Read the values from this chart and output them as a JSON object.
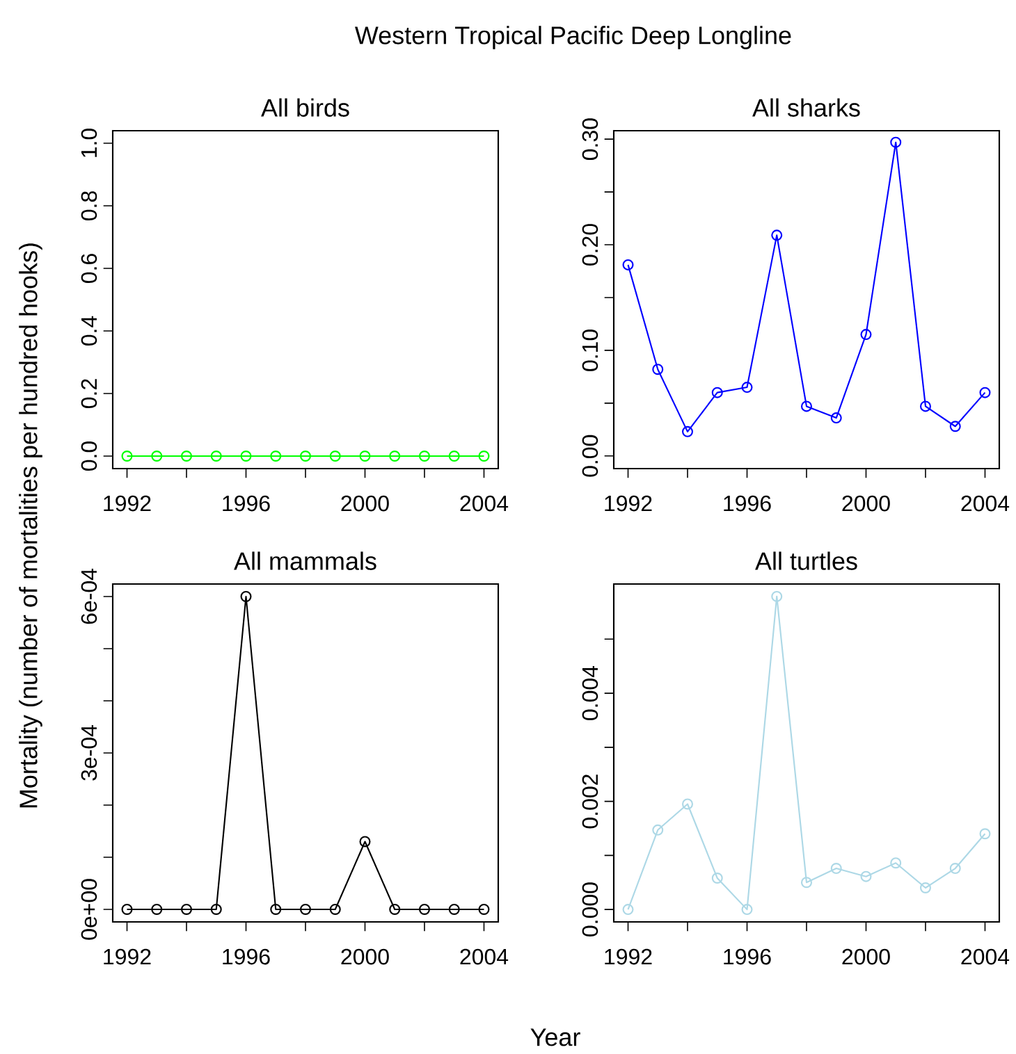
{
  "chart_data": [
    {
      "type": "line",
      "title": "All birds",
      "annotations": [
        "Western Tropical Pacific Deep Longline"
      ],
      "ylabel": "Mortality (number of mortalities per hundred hooks)",
      "marker": "circle",
      "line_style": "solid",
      "x": [
        1992,
        1993,
        1994,
        1995,
        1996,
        1997,
        1998,
        1999,
        2000,
        2001,
        2002,
        2003,
        2004
      ],
      "series": [
        {
          "color": "#00ff00",
          "values": [
            0,
            0,
            0,
            0,
            0,
            0,
            0,
            0,
            0,
            0,
            0,
            0,
            0
          ]
        }
      ],
      "xlim": [
        1991.52,
        2004.48
      ],
      "ylim": [
        -0.04,
        1.04
      ],
      "xticks": [
        1992,
        {
          "value": 1994,
          "label": null
        },
        1996,
        {
          "value": 1998,
          "label": null
        },
        2000,
        {
          "value": 2002,
          "label": null
        },
        2004
      ],
      "yticks": [
        {
          "value": 0,
          "label": "0.0"
        },
        0.2,
        0.4,
        0.6,
        0.8,
        {
          "value": 1,
          "label": "1.0"
        }
      ]
    },
    {
      "type": "line",
      "title": "All sharks",
      "marker": "circle",
      "line_style": "solid",
      "x": [
        1992,
        1993,
        1994,
        1995,
        1996,
        1997,
        1998,
        1999,
        2000,
        2001,
        2002,
        2003,
        2004
      ],
      "series": [
        {
          "color": "#0000ff",
          "values": [
            0.181,
            0.082,
            0.023,
            0.06,
            0.065,
            0.209,
            0.047,
            0.036,
            0.115,
            0.297,
            0.047,
            0.028,
            0.06
          ]
        }
      ],
      "xlim": [
        1991.52,
        2004.48
      ],
      "ylim": [
        -0.012,
        0.308
      ],
      "xticks": [
        1992,
        {
          "value": 1994,
          "label": null
        },
        1996,
        {
          "value": 1998,
          "label": null
        },
        2000,
        {
          "value": 2002,
          "label": null
        },
        2004
      ],
      "yticks": [
        {
          "value": 0,
          "label": "0.00"
        },
        {
          "value": 0.05,
          "label": null
        },
        {
          "value": 0.1,
          "label": "0.10"
        },
        {
          "value": 0.15,
          "label": null
        },
        {
          "value": 0.2,
          "label": "0.20"
        },
        {
          "value": 0.25,
          "label": null
        },
        {
          "value": 0.3,
          "label": "0.30"
        }
      ]
    },
    {
      "type": "line",
      "title": "All mammals",
      "xlabel": "Year",
      "marker": "circle",
      "line_style": "solid",
      "x": [
        1992,
        1993,
        1994,
        1995,
        1996,
        1997,
        1998,
        1999,
        2000,
        2001,
        2002,
        2003,
        2004
      ],
      "series": [
        {
          "color": "#000000",
          "values": [
            0,
            0,
            0,
            0,
            0.0006,
            0,
            0,
            0,
            0.00013,
            0,
            0,
            0,
            0
          ]
        }
      ],
      "xlim": [
        1991.52,
        2004.48
      ],
      "ylim": [
        -2.4e-05,
        0.000624
      ],
      "xticks": [
        1992,
        {
          "value": 1994,
          "label": null
        },
        1996,
        {
          "value": 1998,
          "label": null
        },
        2000,
        {
          "value": 2002,
          "label": null
        },
        2004
      ],
      "yticks": [
        {
          "value": 0,
          "label": "0e+00"
        },
        {
          "value": 0.0001,
          "label": null
        },
        {
          "value": 0.0002,
          "label": null
        },
        {
          "value": 0.0003,
          "label": "3e-04"
        },
        {
          "value": 0.0004,
          "label": null
        },
        {
          "value": 0.0005,
          "label": null
        },
        {
          "value": 0.0006,
          "label": "6e-04"
        }
      ]
    },
    {
      "type": "line",
      "title": "All turtles",
      "marker": "circle",
      "line_style": "solid",
      "x": [
        1992,
        1993,
        1994,
        1995,
        1996,
        1997,
        1998,
        1999,
        2000,
        2001,
        2002,
        2003,
        2004
      ],
      "series": [
        {
          "color": "#add8e6",
          "values": [
            0,
            0.00147,
            0.00195,
            0.00058,
            0,
            0.00579,
            0.0005,
            0.00076,
            0.00061,
            0.00086,
            0.0004,
            0.00076,
            0.0014
          ]
        }
      ],
      "xlim": [
        1991.52,
        2004.48
      ],
      "ylim": [
        -0.00023,
        0.00602
      ],
      "xticks": [
        1992,
        {
          "value": 1994,
          "label": null
        },
        1996,
        {
          "value": 1998,
          "label": null
        },
        2000,
        {
          "value": 2002,
          "label": null
        },
        2004
      ],
      "yticks": [
        {
          "value": 0,
          "label": "0.000"
        },
        {
          "value": 0.001,
          "label": null
        },
        {
          "value": 0.002,
          "label": "0.002"
        },
        {
          "value": 0.003,
          "label": null
        },
        {
          "value": 0.004,
          "label": "0.004"
        },
        {
          "value": 0.005,
          "label": null
        }
      ]
    }
  ]
}
